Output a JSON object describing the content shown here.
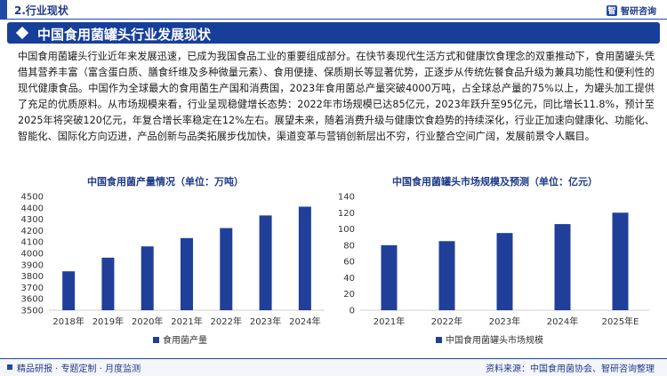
{
  "header": {
    "section_label": "2.行业现状",
    "brand_mark": "智",
    "brand_name": "智研咨询"
  },
  "title": "中国食用菌罐头行业发展现状",
  "paragraph": "中国食用菌罐头行业近年来发展迅速，已成为我国食品工业的重要组成部分。在快节奏现代生活方式和健康饮食理念的双重推动下，食用菌罐头凭借其营养丰富（富含蛋白质、膳食纤维及多种微量元素）、食用便捷、保质期长等显著优势，正逐步从传统佐餐食品升级为兼具功能性和便利性的现代健康食品。中国作为全球最大的食用菌生产国和消费国，2023年食用菌总产量突破4000万吨，占全球总产量的75%以上，为罐头加工提供了充足的优质原料。从市场规模来看，行业呈现稳健增长态势：2022年市场规模已达85亿元，2023年跃升至95亿元，同比增长11.8%，预计至2025年将突破120亿元，年复合增长率稳定在12%左右。展望未来，随着消费升级与健康饮食趋势的持续深化，行业正加速向健康化、功能化、智能化、国际化方向迈进，产品创新与品类拓展步伐加快，渠道变革与营销创新层出不穷，行业整合空间广阔，发展前景令人瞩目。",
  "footer": {
    "left": "精品研报 · 专题定制 · 月度监测",
    "source": "资料来源：中国食用菌协会、智研咨询整理"
  },
  "colors": {
    "bar": "#1f3f99",
    "accent": "#1f4aa6"
  },
  "chart_data": [
    {
      "type": "bar",
      "title": "中国食用菌产量情况（单位：万吨）",
      "categories": [
        "2018年",
        "2019年",
        "2020年",
        "2021年",
        "2022年",
        "2023年",
        "2024年"
      ],
      "series": [
        {
          "name": "食用菌产量",
          "values": [
            3842,
            3962,
            4061,
            4134,
            4222,
            4333,
            4410
          ]
        }
      ],
      "ylim": [
        3500,
        4500
      ],
      "yticks": [
        "3500",
        "3600",
        "3700",
        "3800",
        "3900",
        "4000",
        "4100",
        "4200",
        "4300",
        "4400",
        "4500"
      ],
      "legend": "bottom"
    },
    {
      "type": "bar",
      "title": "中国食用菌罐头市场规模及预测（单位：亿元）",
      "categories": [
        "2021年",
        "2022年",
        "2023年",
        "2024年",
        "2025年E"
      ],
      "series": [
        {
          "name": "中国食用菌罐头市场规模",
          "values": [
            80,
            85,
            95,
            106,
            120
          ]
        }
      ],
      "ylim": [
        0,
        140
      ],
      "yticks": [
        "0",
        "20",
        "40",
        "60",
        "80",
        "100",
        "120",
        "140"
      ],
      "legend": "bottom"
    }
  ]
}
